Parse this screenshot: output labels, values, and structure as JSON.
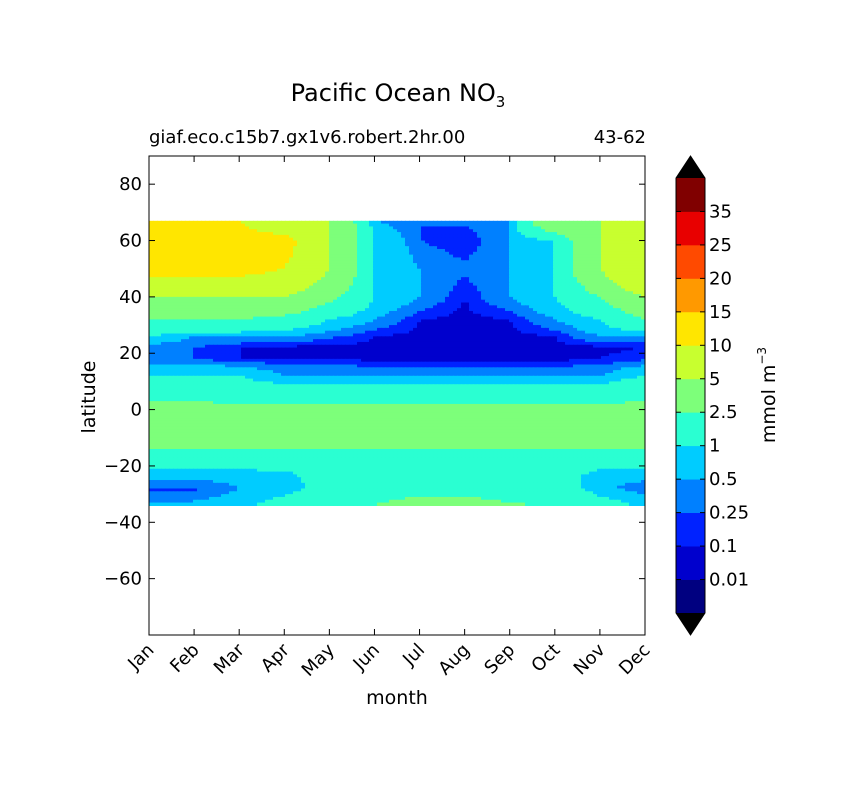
{
  "chart_data": {
    "type": "heatmap",
    "title": "Pacific Ocean NO",
    "title_subscript": "3",
    "subtitle_left": "giaf.eco.c15b7.gx1v6.robert.2hr.00",
    "subtitle_right": "43-62",
    "xlabel": "month",
    "ylabel": "latitude",
    "x_categories": [
      "Jan",
      "Feb",
      "Mar",
      "Apr",
      "May",
      "Jun",
      "Jul",
      "Aug",
      "Sep",
      "Oct",
      "Nov",
      "Dec"
    ],
    "xlim": [
      0,
      11
    ],
    "ylim": [
      -80,
      90
    ],
    "y_ticks": [
      {
        "value": 80,
        "label": "80"
      },
      {
        "value": 60,
        "label": "60"
      },
      {
        "value": 40,
        "label": "40"
      },
      {
        "value": 20,
        "label": "20"
      },
      {
        "value": 0,
        "label": "0"
      },
      {
        "value": -20,
        "label": "−20"
      },
      {
        "value": -40,
        "label": "−40"
      },
      {
        "value": -60,
        "label": "−60"
      }
    ],
    "data_lat_range": [
      -34,
      67
    ],
    "colorbar": {
      "label": "mmol m",
      "label_superscript": "−3",
      "levels": [
        0,
        0.01,
        0.1,
        0.25,
        0.5,
        1,
        2.5,
        5,
        10,
        15,
        20,
        25,
        35,
        40
      ],
      "tick_labels": [
        "0.01",
        "0.1",
        "0.25",
        "0.5",
        "1",
        "2.5",
        "5",
        "10",
        "15",
        "20",
        "25",
        "35"
      ],
      "colors": [
        "#000080",
        "#0000cd",
        "#0022ff",
        "#0080ff",
        "#00ccff",
        "#2affd2",
        "#7dff7a",
        "#c8ff2f",
        "#ffe600",
        "#ff9900",
        "#ff4a00",
        "#e80000",
        "#800000"
      ],
      "extend_min_color": "#000000",
      "extend_max_color": "#000000"
    },
    "grid_lats": [
      67,
      60,
      50,
      40,
      32,
      26,
      22,
      18,
      12,
      6,
      0,
      -6,
      -12,
      -18,
      -24,
      -28,
      -34
    ],
    "grid_months": [
      0,
      1,
      2,
      3,
      4,
      5,
      6,
      7,
      8,
      9,
      10,
      11
    ],
    "grid_values": [
      [
        10,
        10,
        10,
        5,
        5,
        0.5,
        0.25,
        0.3,
        0.5,
        5,
        5,
        10
      ],
      [
        12,
        12,
        12,
        12,
        5,
        1,
        0.25,
        0.1,
        0.5,
        1,
        5,
        10
      ],
      [
        12,
        12,
        12,
        10,
        5,
        1,
        0.5,
        0.3,
        0.5,
        1,
        5,
        10
      ],
      [
        5,
        5,
        5,
        5,
        3,
        1,
        0.5,
        0.1,
        0.5,
        1,
        2.5,
        5
      ],
      [
        2.5,
        2.5,
        2.5,
        2,
        1,
        0.5,
        0.1,
        0.05,
        0.1,
        0.5,
        1,
        2.5
      ],
      [
        1,
        0.5,
        0.5,
        0.5,
        0.3,
        0.1,
        0.05,
        0.05,
        0.05,
        0.1,
        0.5,
        0.5
      ],
      [
        0.3,
        0.25,
        0.1,
        0.05,
        0.05,
        0.05,
        0.005,
        0.005,
        0.05,
        0.05,
        0.05,
        0.1
      ],
      [
        0.3,
        0.25,
        0.1,
        0.1,
        0.1,
        0.05,
        0.05,
        0.05,
        0.05,
        0.05,
        0.1,
        0.2
      ],
      [
        1,
        1,
        1,
        0.5,
        0.5,
        0.5,
        0.5,
        0.5,
        0.5,
        0.5,
        0.5,
        1
      ],
      [
        2,
        2,
        1.5,
        1.5,
        1.5,
        1.5,
        1.5,
        1.5,
        1.5,
        1.5,
        1.5,
        2
      ],
      [
        3,
        3,
        3,
        3,
        3,
        3,
        3,
        3,
        3,
        3,
        3,
        3
      ],
      [
        4,
        4,
        4,
        4,
        4,
        4,
        4,
        4,
        4,
        4,
        4,
        4
      ],
      [
        3,
        3,
        3,
        3,
        3,
        3,
        3,
        3,
        3,
        3,
        3,
        3
      ],
      [
        1.5,
        1.5,
        1.5,
        1.5,
        1.5,
        1.5,
        1.5,
        1.5,
        1.5,
        1.5,
        1.5,
        1.5
      ],
      [
        0.6,
        0.6,
        0.6,
        0.7,
        1.5,
        1.5,
        1.5,
        1.5,
        1.5,
        1.5,
        0.6,
        0.6
      ],
      [
        0.2,
        0.2,
        0.5,
        0.6,
        1.5,
        2,
        2,
        2,
        2,
        1.5,
        0.6,
        0.3
      ],
      [
        0.6,
        0.6,
        0.7,
        1.5,
        2,
        2.5,
        3,
        3,
        2.6,
        2.5,
        1.5,
        0.8
      ]
    ]
  }
}
